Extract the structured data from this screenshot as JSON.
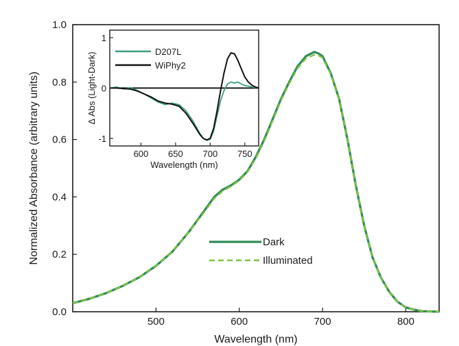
{
  "colors": {
    "dark": "#2e8b57",
    "illuminated": "#7fc241",
    "d207l": "#3aa07a",
    "wiphy2": "#111111",
    "axis": "#1a1a1a"
  },
  "chart_data": [
    {
      "type": "line",
      "xlabel": "Wavelength (nm)",
      "ylabel": "Normalized Absorbance (arbitrary units)",
      "xlim": [
        400,
        840
      ],
      "ylim": [
        0,
        1.0
      ],
      "xticks": [
        500,
        600,
        700,
        800
      ],
      "yticks": [
        0.0,
        0.2,
        0.4,
        0.6,
        0.8,
        1.0
      ],
      "xtick_labels": [
        "500",
        "600",
        "700",
        "800"
      ],
      "ytick_labels": [
        "0.0",
        "0.2",
        "0.4",
        "0.6",
        "0.8",
        "1.0"
      ],
      "legend": {
        "placement": "center-right",
        "entries": [
          "Dark",
          "Illuminated"
        ]
      },
      "series": [
        {
          "name": "Dark",
          "style": "solid",
          "x": [
            400,
            420,
            440,
            460,
            480,
            500,
            520,
            540,
            560,
            570,
            580,
            590,
            600,
            610,
            620,
            630,
            640,
            650,
            660,
            670,
            680,
            690,
            695,
            700,
            710,
            720,
            730,
            740,
            750,
            760,
            770,
            780,
            790,
            800,
            810,
            820,
            840
          ],
          "y": [
            0.03,
            0.045,
            0.065,
            0.09,
            0.12,
            0.16,
            0.21,
            0.28,
            0.36,
            0.4,
            0.425,
            0.44,
            0.46,
            0.49,
            0.54,
            0.6,
            0.67,
            0.74,
            0.8,
            0.855,
            0.89,
            0.905,
            0.9,
            0.89,
            0.83,
            0.74,
            0.6,
            0.44,
            0.3,
            0.19,
            0.12,
            0.07,
            0.035,
            0.015,
            0.007,
            0.002,
            0.0
          ]
        },
        {
          "name": "Illuminated",
          "style": "dashed",
          "x": [
            400,
            420,
            440,
            460,
            480,
            500,
            520,
            540,
            560,
            570,
            580,
            590,
            600,
            610,
            620,
            630,
            640,
            650,
            660,
            670,
            680,
            690,
            695,
            700,
            710,
            720,
            730,
            740,
            750,
            760,
            770,
            780,
            790,
            800,
            810,
            820,
            840
          ],
          "y": [
            0.03,
            0.045,
            0.065,
            0.09,
            0.12,
            0.16,
            0.21,
            0.28,
            0.355,
            0.395,
            0.42,
            0.437,
            0.457,
            0.487,
            0.535,
            0.595,
            0.665,
            0.735,
            0.795,
            0.848,
            0.882,
            0.895,
            0.893,
            0.885,
            0.827,
            0.74,
            0.6,
            0.44,
            0.3,
            0.19,
            0.12,
            0.07,
            0.035,
            0.015,
            0.007,
            0.002,
            0.0
          ]
        }
      ]
    },
    {
      "type": "line",
      "xlabel": "Wavelength (nm)",
      "ylabel": "Δ Abs (Light-Dark)",
      "xlim": [
        555,
        770
      ],
      "ylim": [
        -1.15,
        1.15
      ],
      "xticks": [
        600,
        650,
        700,
        750
      ],
      "yticks": [
        -1,
        0,
        1
      ],
      "xtick_labels": [
        "600",
        "650",
        "700",
        "750"
      ],
      "ytick_labels": [
        "-1",
        "0",
        "1"
      ],
      "legend": {
        "placement": "top-left",
        "entries": [
          "D207L",
          "WiPhy2"
        ]
      },
      "series": [
        {
          "name": "D207L",
          "x": [
            555,
            565,
            575,
            585,
            595,
            605,
            615,
            625,
            635,
            645,
            655,
            665,
            675,
            685,
            690,
            695,
            700,
            705,
            710,
            715,
            720,
            725,
            730,
            735,
            740,
            745,
            750,
            755,
            760,
            765,
            770
          ],
          "y": [
            0.0,
            0.02,
            -0.02,
            0.01,
            -0.05,
            -0.12,
            -0.2,
            -0.28,
            -0.33,
            -0.3,
            -0.33,
            -0.45,
            -0.65,
            -0.9,
            -1.0,
            -1.04,
            -1.02,
            -0.85,
            -0.55,
            -0.25,
            -0.05,
            0.08,
            0.12,
            0.1,
            0.12,
            0.08,
            0.05,
            0.04,
            0.02,
            0.01,
            0.0
          ]
        },
        {
          "name": "WiPhy2",
          "x": [
            555,
            565,
            575,
            585,
            595,
            605,
            615,
            625,
            635,
            645,
            655,
            665,
            675,
            685,
            690,
            695,
            700,
            705,
            710,
            715,
            720,
            725,
            730,
            735,
            740,
            745,
            750,
            755,
            760,
            765,
            770
          ],
          "y": [
            0.0,
            0.0,
            -0.01,
            -0.02,
            -0.06,
            -0.12,
            -0.18,
            -0.26,
            -0.3,
            -0.32,
            -0.36,
            -0.5,
            -0.7,
            -0.92,
            -1.0,
            -1.03,
            -1.0,
            -0.8,
            -0.45,
            -0.05,
            0.3,
            0.58,
            0.7,
            0.68,
            0.55,
            0.38,
            0.22,
            0.12,
            0.06,
            0.02,
            0.0
          ]
        }
      ]
    }
  ]
}
